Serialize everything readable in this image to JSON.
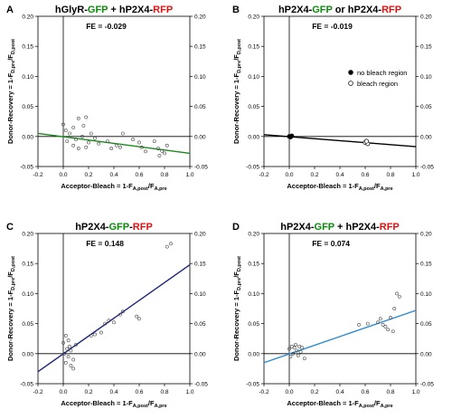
{
  "chart_data": [
    {
      "panel": "A",
      "type": "scatter",
      "title_segments": [
        {
          "text": "hGlyR-",
          "color": "#000000"
        },
        {
          "text": "GFP",
          "color": "#0a8a0a"
        },
        {
          "text": " + hP2X4-",
          "color": "#000000"
        },
        {
          "text": "RFP",
          "color": "#e01010"
        }
      ],
      "fe": "FE = -0.029",
      "xlabel": "Acceptor-Bleach = 1-F",
      "xlabel_sub": "A,post",
      "xlabel_mid": "/F",
      "xlabel_sub2": "A,pre",
      "ylabel": "Donor-Recovery = 1-F",
      "ylabel_sub": "D,pre",
      "ylabel_mid": "/F",
      "ylabel_sub2": "D,post",
      "xlim": [
        -0.2,
        1.0
      ],
      "ylim": [
        -0.05,
        0.2
      ],
      "xticks": [
        -0.2,
        0.0,
        0.2,
        0.4,
        0.6,
        0.8,
        1.0
      ],
      "yticks": [
        -0.05,
        0.0,
        0.05,
        0.1,
        0.15,
        0.2
      ],
      "xtick_labels": [
        "-0.2",
        "0.0",
        "0.2",
        "0.4",
        "0.6",
        "0.8",
        "1.0"
      ],
      "ytick_labels": [
        "-0.05",
        "0.00",
        "0.05",
        "0.10",
        "0.15",
        "0.20"
      ],
      "fit_line": {
        "x": [
          -0.2,
          1.0
        ],
        "y": [
          0.005,
          -0.028
        ],
        "color": "#1a8a1a"
      },
      "points": [
        {
          "x": 0.0,
          "y": 0.02
        },
        {
          "x": 0.02,
          "y": 0.01
        },
        {
          "x": 0.05,
          "y": 0.005
        },
        {
          "x": 0.08,
          "y": 0.015
        },
        {
          "x": 0.12,
          "y": 0.03
        },
        {
          "x": 0.16,
          "y": 0.018
        },
        {
          "x": 0.18,
          "y": 0.032
        },
        {
          "x": 0.1,
          "y": -0.005
        },
        {
          "x": 0.03,
          "y": -0.008
        },
        {
          "x": 0.15,
          "y": 0.0
        },
        {
          "x": 0.2,
          "y": -0.01
        },
        {
          "x": 0.22,
          "y": 0.005
        },
        {
          "x": 0.08,
          "y": -0.015
        },
        {
          "x": 0.25,
          "y": -0.003
        },
        {
          "x": 0.18,
          "y": -0.018
        },
        {
          "x": 0.28,
          "y": -0.012
        },
        {
          "x": 0.12,
          "y": -0.02
        },
        {
          "x": 0.35,
          "y": -0.008
        },
        {
          "x": 0.38,
          "y": -0.02
        },
        {
          "x": 0.42,
          "y": -0.015
        },
        {
          "x": 0.47,
          "y": 0.005
        },
        {
          "x": 0.45,
          "y": -0.018
        },
        {
          "x": 0.55,
          "y": -0.005
        },
        {
          "x": 0.6,
          "y": -0.01
        },
        {
          "x": 0.62,
          "y": -0.018
        },
        {
          "x": 0.65,
          "y": -0.025
        },
        {
          "x": 0.72,
          "y": -0.008
        },
        {
          "x": 0.75,
          "y": -0.02
        },
        {
          "x": 0.78,
          "y": -0.024
        },
        {
          "x": 0.8,
          "y": -0.028
        },
        {
          "x": 0.82,
          "y": -0.015
        },
        {
          "x": 0.76,
          "y": -0.032
        }
      ]
    },
    {
      "panel": "B",
      "type": "scatter",
      "title_segments": [
        {
          "text": "hP2X4-",
          "color": "#000000"
        },
        {
          "text": "GFP",
          "color": "#0a8a0a"
        },
        {
          "text": " or hP2X4-",
          "color": "#000000"
        },
        {
          "text": "RFP",
          "color": "#e01010"
        }
      ],
      "fe": "FE = -0.019",
      "xlabel": "Acceptor-Bleach = 1-F",
      "xlabel_sub": "A,post",
      "xlabel_mid": "/F",
      "xlabel_sub2": "A,pre",
      "ylabel": "Donor-Recovery = 1-F",
      "ylabel_sub": "D,pre",
      "ylabel_mid": "/F",
      "ylabel_sub2": "D,post",
      "xlim": [
        -0.2,
        1.0
      ],
      "ylim": [
        -0.05,
        0.2
      ],
      "xticks": [
        -0.2,
        0.0,
        0.2,
        0.4,
        0.6,
        0.8,
        1.0
      ],
      "yticks": [
        -0.05,
        0.0,
        0.05,
        0.1,
        0.15,
        0.2
      ],
      "xtick_labels": [
        "-0.2",
        "0.0",
        "0.2",
        "0.4",
        "0.6",
        "0.8",
        "1.0"
      ],
      "ytick_labels": [
        "-0.05",
        "0.00",
        "0.05",
        "0.10",
        "0.15",
        "0.20"
      ],
      "fit_line": {
        "x": [
          -0.2,
          1.0
        ],
        "y": [
          0.003,
          -0.017
        ],
        "color": "#000000"
      },
      "legend": [
        {
          "label": "no bleach region",
          "marker": "filled"
        },
        {
          "label": "bleach region",
          "marker": "open"
        }
      ],
      "legend_position": "middle-right",
      "points_filled": [
        {
          "x": 0.0,
          "y": 0.0
        },
        {
          "x": 0.01,
          "y": -0.001
        },
        {
          "x": 0.02,
          "y": 0.001
        }
      ],
      "points_open": [
        {
          "x": 0.6,
          "y": -0.01
        },
        {
          "x": 0.62,
          "y": -0.012
        },
        {
          "x": 0.61,
          "y": -0.008
        }
      ]
    },
    {
      "panel": "C",
      "type": "scatter",
      "title_segments": [
        {
          "text": "hP2X4-",
          "color": "#000000"
        },
        {
          "text": "GFP",
          "color": "#0a8a0a"
        },
        {
          "text": "-",
          "color": "#000000"
        },
        {
          "text": "RFP",
          "color": "#e01010"
        }
      ],
      "fe": "FE = 0.148",
      "xlabel": "Acceptor-Bleach = 1-F",
      "xlabel_sub": "A,post",
      "xlabel_mid": "/F",
      "xlabel_sub2": "A,pre",
      "ylabel": "Donor-Recovery = 1-F",
      "ylabel_sub": "D,pre",
      "ylabel_mid": "/F",
      "ylabel_sub2": "D,post",
      "xlim": [
        -0.2,
        1.0
      ],
      "ylim": [
        -0.05,
        0.2
      ],
      "xticks": [
        -0.2,
        0.0,
        0.2,
        0.4,
        0.6,
        0.8,
        1.0
      ],
      "yticks": [
        -0.05,
        0.0,
        0.05,
        0.1,
        0.15,
        0.2
      ],
      "xtick_labels": [
        "-0.2",
        "0.0",
        "0.2",
        "0.4",
        "0.6",
        "0.8",
        "1.0"
      ],
      "ytick_labels": [
        "-0.05",
        "0.00",
        "0.05",
        "0.10",
        "0.15",
        "0.20"
      ],
      "fit_line": {
        "x": [
          -0.2,
          1.0
        ],
        "y": [
          -0.03,
          0.148
        ],
        "color": "#1a237e"
      },
      "points": [
        {
          "x": 0.02,
          "y": 0.03
        },
        {
          "x": 0.04,
          "y": 0.022
        },
        {
          "x": 0.0,
          "y": 0.018
        },
        {
          "x": 0.05,
          "y": 0.012
        },
        {
          "x": 0.03,
          "y": 0.008
        },
        {
          "x": 0.06,
          "y": 0.005
        },
        {
          "x": 0.01,
          "y": 0.0
        },
        {
          "x": 0.04,
          "y": -0.005
        },
        {
          "x": 0.08,
          "y": -0.01
        },
        {
          "x": 0.02,
          "y": -0.015
        },
        {
          "x": 0.06,
          "y": -0.02
        },
        {
          "x": 0.1,
          "y": 0.015
        },
        {
          "x": 0.08,
          "y": -0.025
        },
        {
          "x": 0.22,
          "y": 0.03
        },
        {
          "x": 0.25,
          "y": 0.032
        },
        {
          "x": 0.3,
          "y": 0.035
        },
        {
          "x": 0.33,
          "y": 0.05
        },
        {
          "x": 0.36,
          "y": 0.055
        },
        {
          "x": 0.4,
          "y": 0.052
        },
        {
          "x": 0.45,
          "y": 0.065
        },
        {
          "x": 0.47,
          "y": 0.07
        },
        {
          "x": 0.58,
          "y": 0.062
        },
        {
          "x": 0.6,
          "y": 0.058
        },
        {
          "x": 0.82,
          "y": 0.178
        },
        {
          "x": 0.85,
          "y": 0.183
        }
      ]
    },
    {
      "panel": "D",
      "type": "scatter",
      "title_segments": [
        {
          "text": "hP2X4-",
          "color": "#000000"
        },
        {
          "text": "GFP",
          "color": "#0a8a0a"
        },
        {
          "text": " + hP2X4-",
          "color": "#000000"
        },
        {
          "text": "RFP",
          "color": "#e01010"
        }
      ],
      "fe": "FE = 0.074",
      "xlabel": "Acceptor-Bleach = 1-F",
      "xlabel_sub": "A,post",
      "xlabel_mid": "/F",
      "xlabel_sub2": "A,pre",
      "ylabel": "Donor-Recovery = 1-F",
      "ylabel_sub": "D,pre",
      "ylabel_mid": "/F",
      "ylabel_sub2": "D,post",
      "xlim": [
        -0.2,
        1.0
      ],
      "ylim": [
        -0.05,
        0.2
      ],
      "xticks": [
        -0.2,
        0.0,
        0.2,
        0.4,
        0.6,
        0.8,
        1.0
      ],
      "yticks": [
        -0.05,
        0.0,
        0.05,
        0.1,
        0.15,
        0.2
      ],
      "xtick_labels": [
        "-0.2",
        "0.0",
        "0.2",
        "0.4",
        "0.6",
        "0.8",
        "1.0"
      ],
      "ytick_labels": [
        "-0.05",
        "0.00",
        "0.05",
        "0.10",
        "0.15",
        "0.20"
      ],
      "fit_line": {
        "x": [
          -0.2,
          1.0
        ],
        "y": [
          -0.015,
          0.072
        ],
        "color": "#2a8ad4"
      },
      "points": [
        {
          "x": 0.0,
          "y": 0.008
        },
        {
          "x": 0.02,
          "y": 0.012
        },
        {
          "x": 0.04,
          "y": 0.01
        },
        {
          "x": 0.05,
          "y": 0.015
        },
        {
          "x": 0.06,
          "y": 0.005
        },
        {
          "x": 0.03,
          "y": 0.0
        },
        {
          "x": 0.08,
          "y": 0.012
        },
        {
          "x": 0.01,
          "y": -0.005
        },
        {
          "x": 0.07,
          "y": -0.003
        },
        {
          "x": 0.1,
          "y": 0.01
        },
        {
          "x": 0.12,
          "y": -0.008
        },
        {
          "x": 0.09,
          "y": 0.003
        },
        {
          "x": 0.55,
          "y": 0.048
        },
        {
          "x": 0.62,
          "y": 0.05
        },
        {
          "x": 0.7,
          "y": 0.052
        },
        {
          "x": 0.72,
          "y": 0.058
        },
        {
          "x": 0.74,
          "y": 0.048
        },
        {
          "x": 0.76,
          "y": 0.045
        },
        {
          "x": 0.78,
          "y": 0.04
        },
        {
          "x": 0.82,
          "y": 0.037
        },
        {
          "x": 0.8,
          "y": 0.06
        },
        {
          "x": 0.85,
          "y": 0.1
        },
        {
          "x": 0.87,
          "y": 0.095
        },
        {
          "x": 0.83,
          "y": 0.075
        }
      ]
    }
  ]
}
